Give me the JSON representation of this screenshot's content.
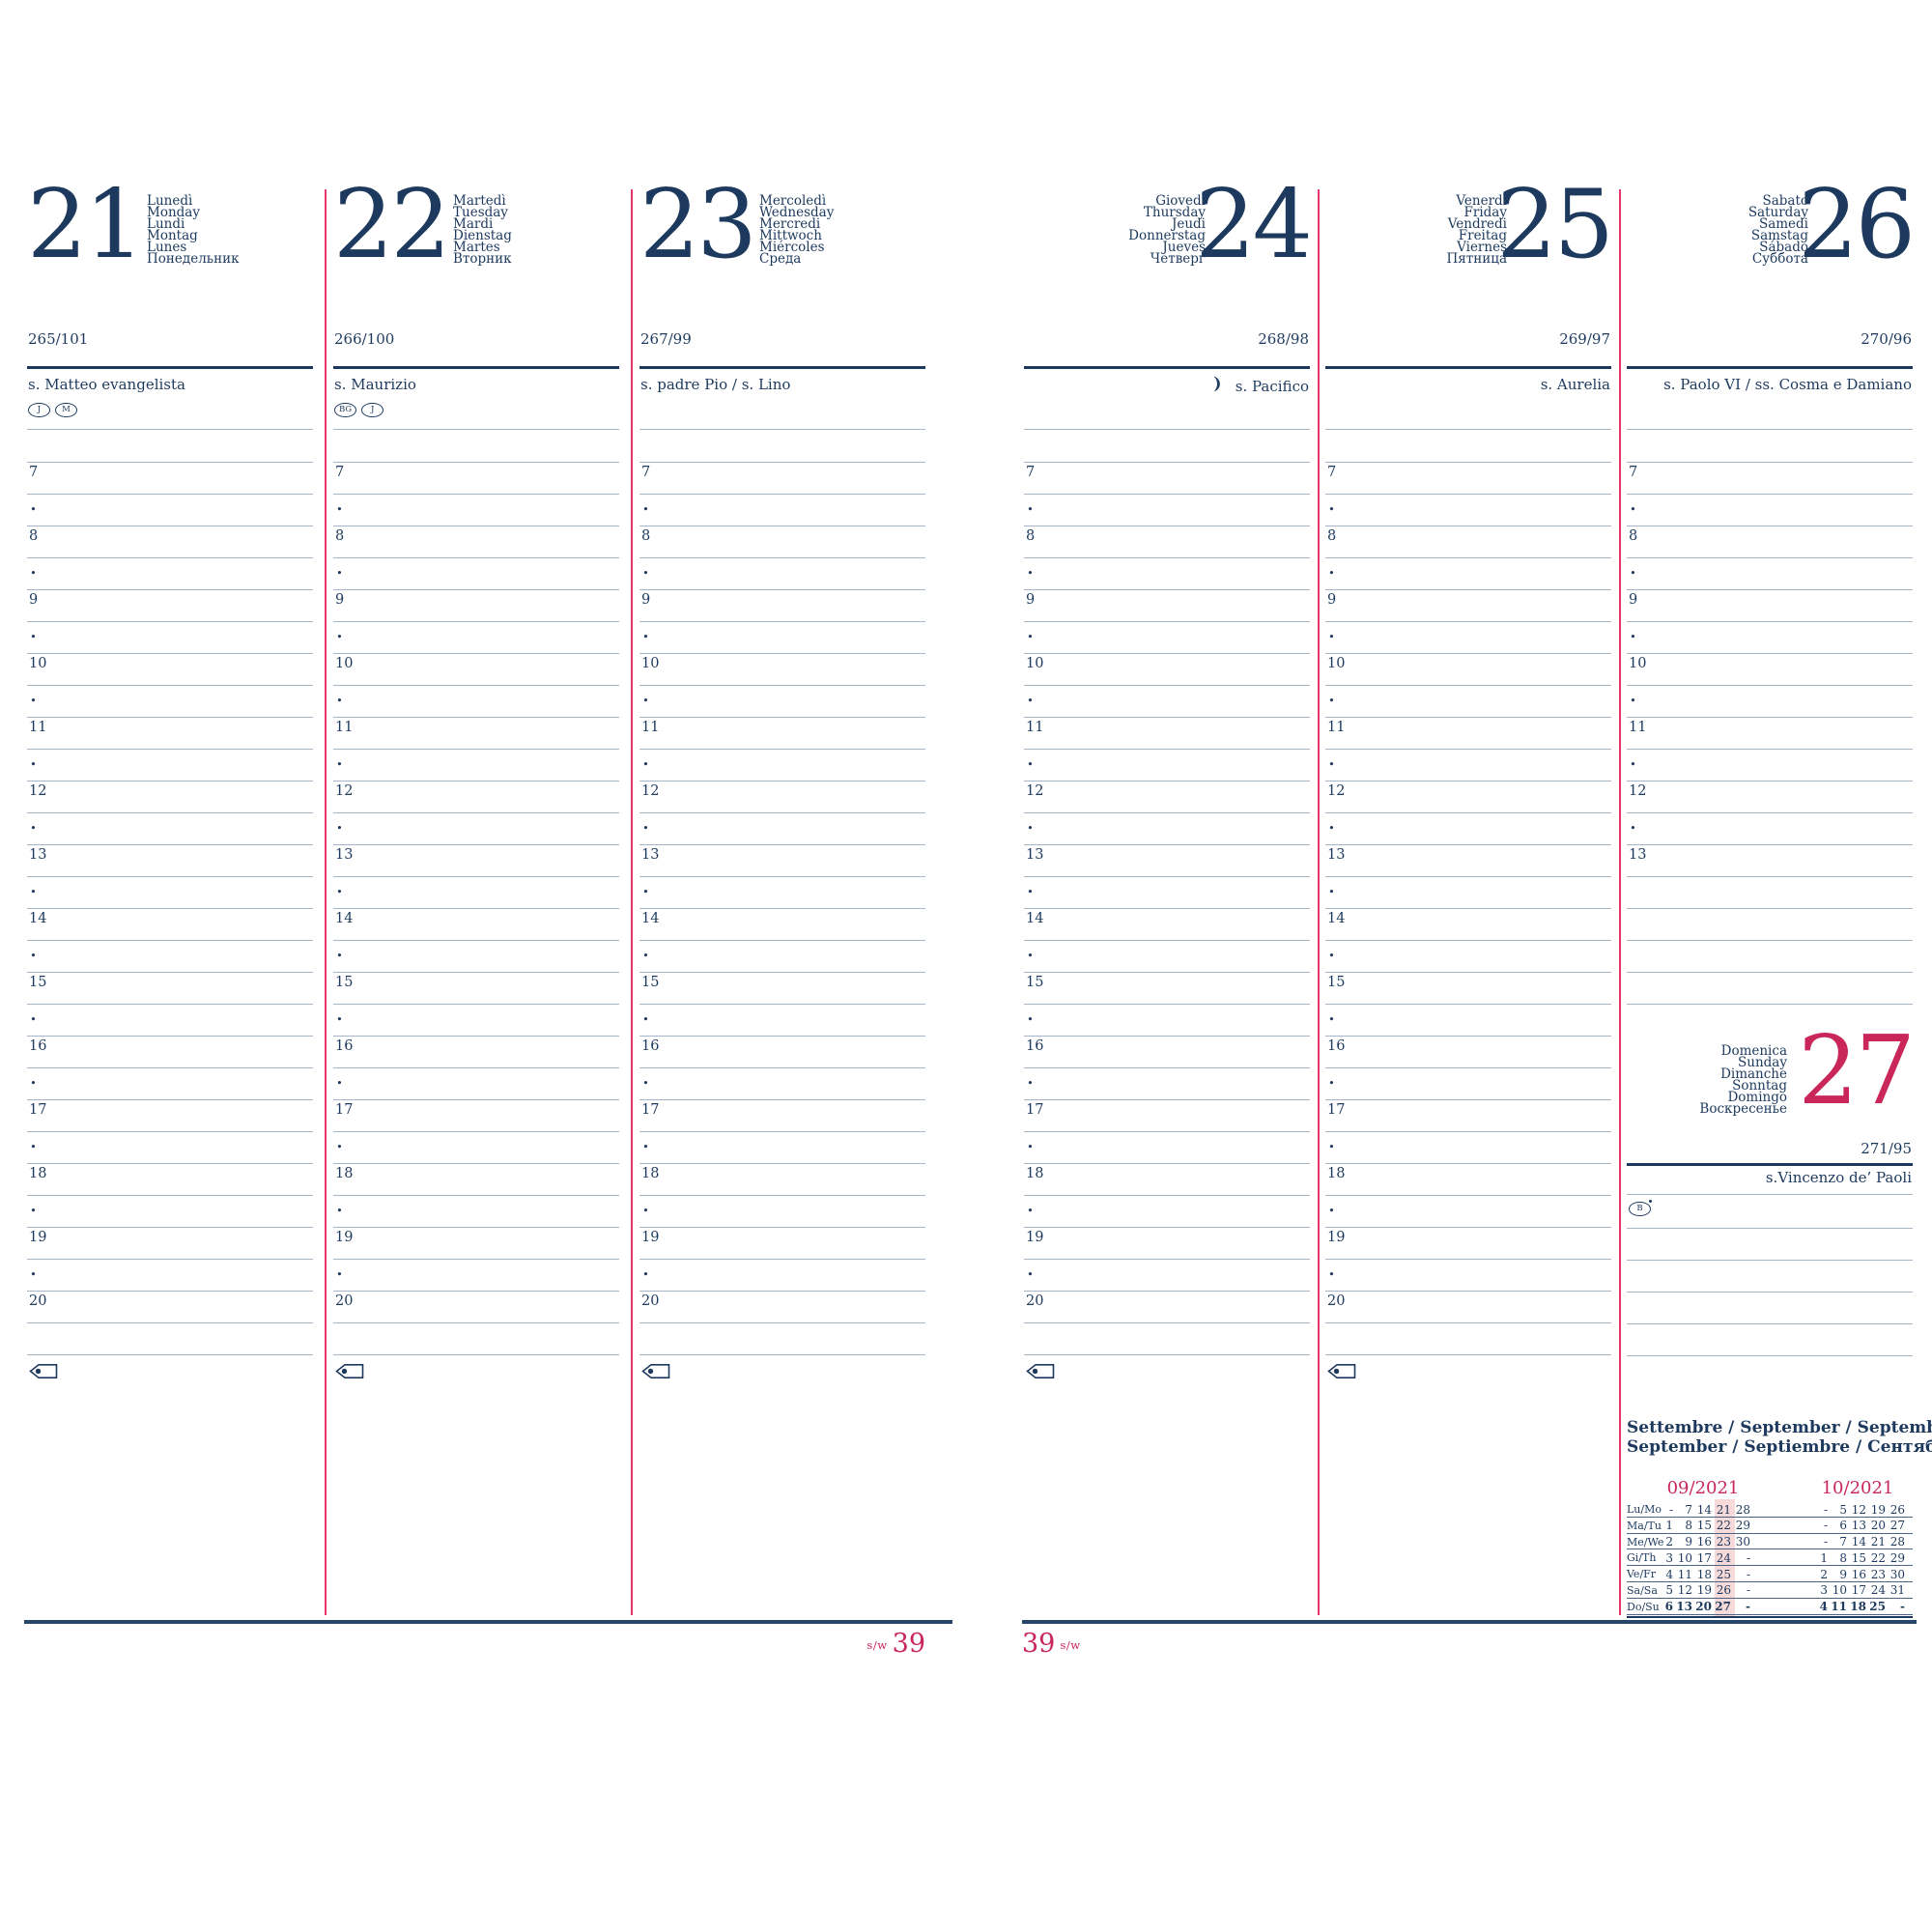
{
  "week": {
    "sw": "s/w",
    "number": "39"
  },
  "hours": {
    "labels": [
      "7",
      "8",
      "9",
      "10",
      "11",
      "12",
      "13",
      "14",
      "15",
      "16",
      "17",
      "18",
      "19",
      "20"
    ],
    "bullet": "•",
    "saturday_last_hour": "13"
  },
  "days": [
    {
      "number": "21",
      "names": [
        "Lunedì",
        "Monday",
        "Lundi",
        "Montag",
        "Lunes",
        "Понедельник"
      ],
      "ordinal": "265/101",
      "saint": "s. Matteo evangelista",
      "badges": [
        "J",
        "M"
      ]
    },
    {
      "number": "22",
      "names": [
        "Martedì",
        "Tuesday",
        "Mardi",
        "Dienstag",
        "Martes",
        "Вторник"
      ],
      "ordinal": "266/100",
      "saint": "s. Maurizio",
      "badges": [
        "BG",
        "J"
      ]
    },
    {
      "number": "23",
      "names": [
        "Mercoledì",
        "Wednesday",
        "Mercredi",
        "Mittwoch",
        "Miércoles",
        "Среда"
      ],
      "ordinal": "267/99",
      "saint": "s. padre Pio / s. Lino",
      "badges": []
    },
    {
      "number": "24",
      "names": [
        "Giovedì",
        "Thursday",
        "Jeudi",
        "Donnerstag",
        "Jueves",
        "Четверг"
      ],
      "ordinal": "268/98",
      "saint": "s. Pacifico",
      "badges": [],
      "moon": true
    },
    {
      "number": "25",
      "names": [
        "Venerdì",
        "Friday",
        "Vendredi",
        "Freitag",
        "Viernes",
        "Пятница"
      ],
      "ordinal": "269/97",
      "saint": "s. Aurelia",
      "badges": []
    },
    {
      "number": "26",
      "names": [
        "Sabato",
        "Saturday",
        "Samedi",
        "Samstag",
        "Sábado",
        "Суббота"
      ],
      "ordinal": "270/96",
      "saint": "s. Paolo VI / ss. Cosma e Damiano",
      "badges": [],
      "short": true
    }
  ],
  "sunday": {
    "number": "27",
    "names": [
      "Domenica",
      "Sunday",
      "Dimanche",
      "Sonntag",
      "Domingo",
      "Воскресенье"
    ],
    "ordinal": "271/95",
    "saint": "s.Vincenzo de’ Paoli",
    "badge": "B"
  },
  "mini_calendar": {
    "title_line1": "Settembre / September / Septembre",
    "title_line2": "September / Septiembre / Сентябрь",
    "month_left": "09/2021",
    "month_right": "10/2021",
    "highlight_col": 3,
    "rows": [
      {
        "dow": "Lu/Mo",
        "left": [
          "-",
          "7",
          "14",
          "21",
          "28"
        ],
        "right": [
          "-",
          "5",
          "12",
          "19",
          "26"
        ],
        "bold": false
      },
      {
        "dow": "Ma/Tu",
        "left": [
          "1",
          "8",
          "15",
          "22",
          "29"
        ],
        "right": [
          "-",
          "6",
          "13",
          "20",
          "27"
        ],
        "bold": false
      },
      {
        "dow": "Me/We",
        "left": [
          "2",
          "9",
          "16",
          "23",
          "30"
        ],
        "right": [
          "-",
          "7",
          "14",
          "21",
          "28"
        ],
        "bold": false
      },
      {
        "dow": "Gi/Th",
        "left": [
          "3",
          "10",
          "17",
          "24",
          "-"
        ],
        "right": [
          "1",
          "8",
          "15",
          "22",
          "29"
        ],
        "bold": false
      },
      {
        "dow": "Ve/Fr",
        "left": [
          "4",
          "11",
          "18",
          "25",
          "-"
        ],
        "right": [
          "2",
          "9",
          "16",
          "23",
          "30"
        ],
        "bold": false
      },
      {
        "dow": "Sa/Sa",
        "left": [
          "5",
          "12",
          "19",
          "26",
          "-"
        ],
        "right": [
          "3",
          "10",
          "17",
          "24",
          "31"
        ],
        "bold": false
      },
      {
        "dow": "Do/Su",
        "left": [
          "6",
          "13",
          "20",
          "27",
          "-"
        ],
        "right": [
          "4",
          "11",
          "18",
          "25",
          "-"
        ],
        "bold": true
      }
    ]
  },
  "colors": {
    "navy": "#1d3a5e",
    "red": "#c9265a",
    "divider_pink": "#e8386b",
    "rule_gray_blue": "#a6b6c8",
    "highlight_pink": "#f6d9d9"
  }
}
